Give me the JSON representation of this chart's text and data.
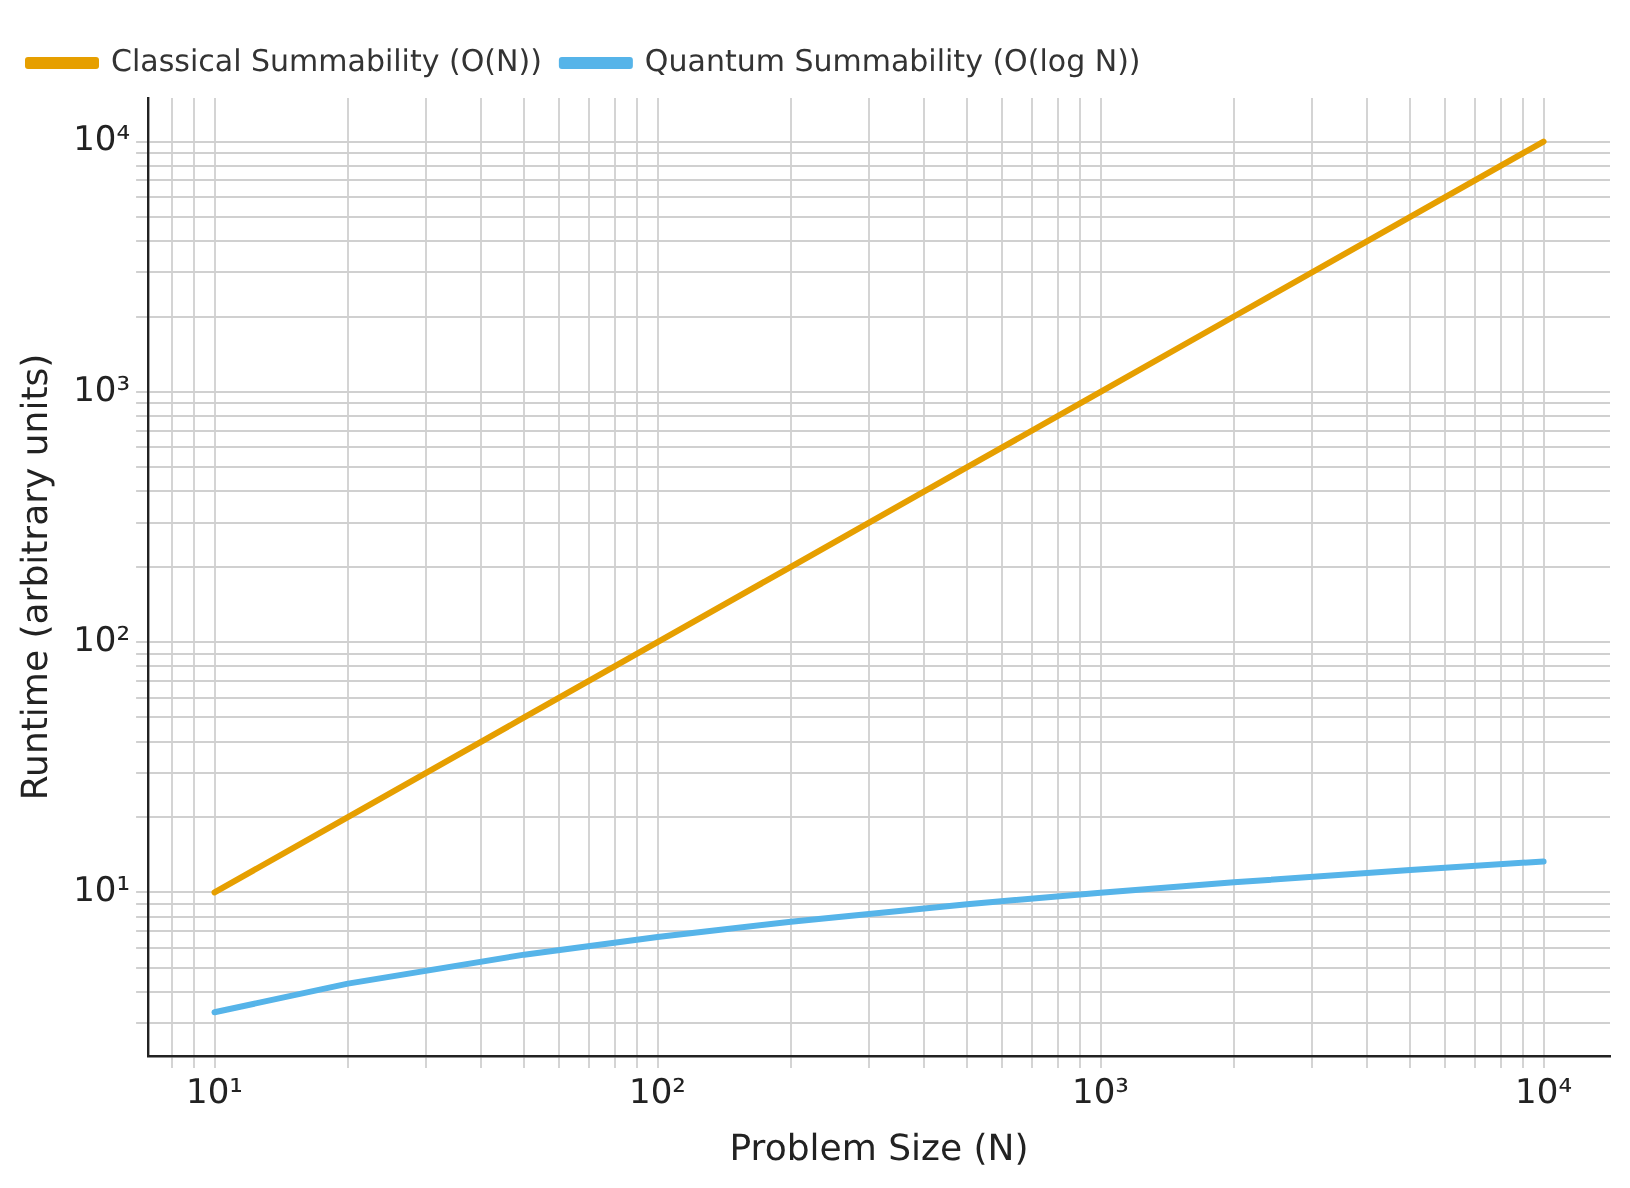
{
  "chart_data": {
    "type": "line",
    "xlabel": "Problem Size (N)",
    "ylabel": "Runtime (arbitrary units)",
    "log": "xy",
    "grid": true,
    "legend": "top left",
    "line_style": "solid",
    "marker": "none",
    "x": [
      10,
      20,
      50,
      100,
      200,
      500,
      1000,
      2000,
      5000,
      10000
    ],
    "series": [
      {
        "name": "Classical Summability (O(N))",
        "color": "#e69f00",
        "values": [
          10,
          20,
          50,
          100,
          200,
          500,
          1000,
          2000,
          5000,
          10000
        ]
      },
      {
        "name": "Quantum Summability (O(log N))",
        "color": "#56b4e9",
        "values": [
          3.32,
          4.32,
          5.64,
          6.64,
          7.64,
          8.97,
          9.97,
          10.97,
          12.29,
          13.29
        ]
      }
    ],
    "xlim": [
      7.08,
      14125
    ],
    "ylim": [
      2.22,
      14930
    ],
    "xticks": [
      {
        "value": 8,
        "label": null
      },
      {
        "value": 9,
        "label": null
      },
      {
        "value": 10,
        "label": "10¹"
      },
      {
        "value": 20,
        "label": null
      },
      {
        "value": 30,
        "label": null
      },
      {
        "value": 40,
        "label": null
      },
      {
        "value": 50,
        "label": null
      },
      {
        "value": 60,
        "label": null
      },
      {
        "value": 70,
        "label": null
      },
      {
        "value": 80,
        "label": null
      },
      {
        "value": 90,
        "label": null
      },
      {
        "value": 100,
        "label": "10²"
      },
      {
        "value": 200,
        "label": null
      },
      {
        "value": 300,
        "label": null
      },
      {
        "value": 400,
        "label": null
      },
      {
        "value": 500,
        "label": null
      },
      {
        "value": 600,
        "label": null
      },
      {
        "value": 700,
        "label": null
      },
      {
        "value": 800,
        "label": null
      },
      {
        "value": 900,
        "label": null
      },
      {
        "value": 1000,
        "label": "10³"
      },
      {
        "value": 2000,
        "label": null
      },
      {
        "value": 3000,
        "label": null
      },
      {
        "value": 4000,
        "label": null
      },
      {
        "value": 5000,
        "label": null
      },
      {
        "value": 6000,
        "label": null
      },
      {
        "value": 7000,
        "label": null
      },
      {
        "value": 8000,
        "label": null
      },
      {
        "value": 9000,
        "label": null
      },
      {
        "value": 10000,
        "label": "10⁴"
      }
    ],
    "yticks": [
      {
        "value": 3,
        "label": null
      },
      {
        "value": 4,
        "label": null
      },
      {
        "value": 5,
        "label": null
      },
      {
        "value": 6,
        "label": null
      },
      {
        "value": 7,
        "label": null
      },
      {
        "value": 8,
        "label": null
      },
      {
        "value": 9,
        "label": null
      },
      {
        "value": 10,
        "label": "10¹"
      },
      {
        "value": 20,
        "label": null
      },
      {
        "value": 30,
        "label": null
      },
      {
        "value": 40,
        "label": null
      },
      {
        "value": 50,
        "label": null
      },
      {
        "value": 60,
        "label": null
      },
      {
        "value": 70,
        "label": null
      },
      {
        "value": 80,
        "label": null
      },
      {
        "value": 90,
        "label": null
      },
      {
        "value": 100,
        "label": "10²"
      },
      {
        "value": 200,
        "label": null
      },
      {
        "value": 300,
        "label": null
      },
      {
        "value": 400,
        "label": null
      },
      {
        "value": 500,
        "label": null
      },
      {
        "value": 600,
        "label": null
      },
      {
        "value": 700,
        "label": null
      },
      {
        "value": 800,
        "label": null
      },
      {
        "value": 900,
        "label": null
      },
      {
        "value": 1000,
        "label": "10³"
      },
      {
        "value": 2000,
        "label": null
      },
      {
        "value": 3000,
        "label": null
      },
      {
        "value": 4000,
        "label": null
      },
      {
        "value": 5000,
        "label": null
      },
      {
        "value": 6000,
        "label": null
      },
      {
        "value": 7000,
        "label": null
      },
      {
        "value": 8000,
        "label": null
      },
      {
        "value": 9000,
        "label": null
      },
      {
        "value": 10000,
        "label": "10⁴"
      }
    ]
  }
}
